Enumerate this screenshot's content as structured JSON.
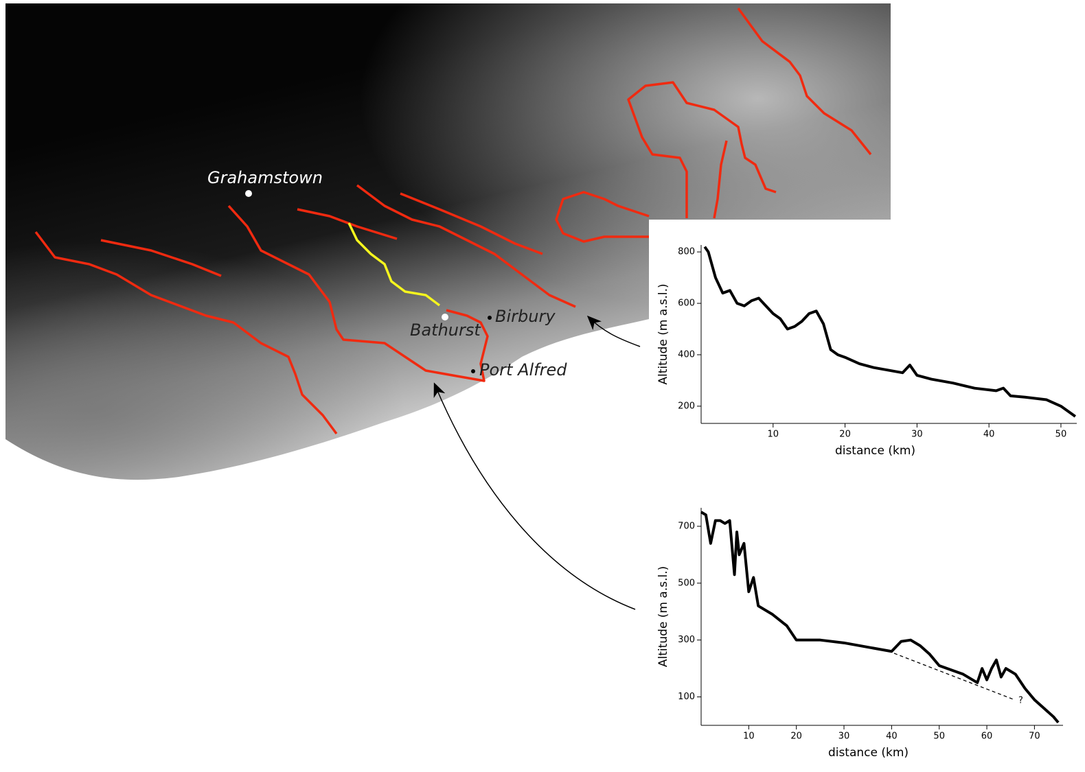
{
  "map": {
    "places": [
      "Grahamstown",
      "Bathurst",
      "Birbury",
      "Port Alfred"
    ]
  },
  "chart_data": [
    {
      "type": "line",
      "x_label": "distance (km)",
      "y_label": "Altitude (m a.s.l.)",
      "color": "#000000",
      "x": [
        0.5,
        1,
        2,
        3,
        4,
        5,
        6,
        7,
        8,
        9,
        10,
        11,
        12,
        13,
        14,
        15,
        16,
        17,
        18,
        19,
        20,
        22,
        24,
        26,
        28,
        29,
        30,
        32,
        35,
        38,
        41,
        42,
        43,
        45,
        48,
        50,
        52
      ],
      "values": [
        820,
        800,
        700,
        640,
        650,
        600,
        590,
        610,
        620,
        590,
        560,
        540,
        500,
        510,
        530,
        560,
        570,
        520,
        420,
        400,
        390,
        365,
        350,
        340,
        330,
        360,
        320,
        305,
        290,
        270,
        260,
        270,
        240,
        235,
        225,
        200,
        160
      ],
      "xlim": [
        0,
        52.2
      ],
      "ylim": [
        133,
        827
      ],
      "xticks": [
        10,
        20,
        30,
        40,
        50
      ],
      "yticks": [
        200,
        400,
        600,
        800
      ]
    },
    {
      "type": "line",
      "x_label": "distance (km)",
      "y_label": "Altitude (m a.s.l.)",
      "color": "#000000",
      "annotation": "?",
      "x": [
        0,
        1,
        2,
        3,
        4,
        5,
        6,
        7,
        7.5,
        8,
        9,
        10,
        11,
        12,
        15,
        18,
        20,
        25,
        30,
        35,
        40,
        42,
        44,
        46,
        48,
        50,
        55,
        58,
        59,
        60,
        61,
        62,
        63,
        64,
        65,
        66,
        68,
        70,
        72,
        74,
        75
      ],
      "values": [
        750,
        740,
        640,
        720,
        720,
        710,
        720,
        530,
        680,
        600,
        640,
        470,
        520,
        420,
        390,
        350,
        300,
        300,
        290,
        275,
        260,
        295,
        300,
        280,
        250,
        210,
        180,
        150,
        200,
        160,
        200,
        230,
        170,
        200,
        190,
        180,
        130,
        90,
        60,
        30,
        10
      ],
      "xlim": [
        0,
        76
      ],
      "ylim": [
        0,
        765
      ],
      "xticks": [
        10,
        20,
        30,
        40,
        50,
        60,
        70
      ],
      "yticks": [
        100,
        300,
        500,
        700
      ]
    }
  ]
}
